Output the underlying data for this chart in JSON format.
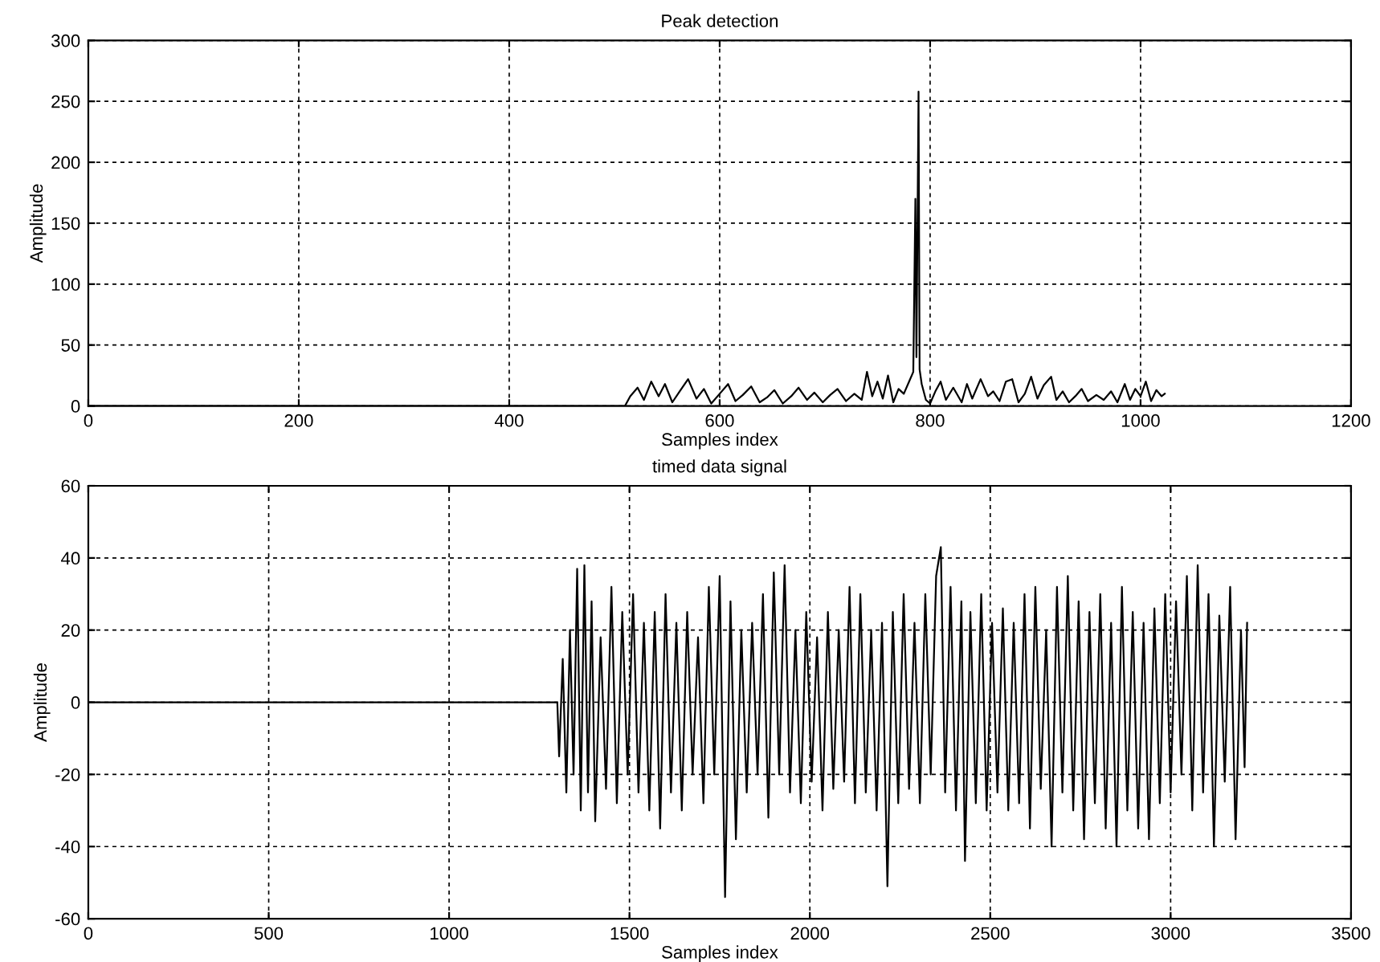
{
  "chart_data": [
    {
      "type": "line",
      "title": "Peak detection",
      "xlabel": "Samples index",
      "ylabel": "Amplitude",
      "xlim": [
        0,
        1200
      ],
      "ylim": [
        0,
        300
      ],
      "xticks": [
        0,
        200,
        400,
        600,
        800,
        1000,
        1200
      ],
      "yticks": [
        0,
        50,
        100,
        150,
        200,
        250,
        300
      ],
      "grid": true,
      "legend": false,
      "line_style": "solid",
      "series": [
        {
          "color": "#000000",
          "x": [
            0,
            510,
            515,
            522,
            528,
            535,
            542,
            548,
            555,
            562,
            570,
            578,
            585,
            592,
            600,
            608,
            615,
            622,
            630,
            638,
            645,
            652,
            660,
            668,
            675,
            683,
            690,
            698,
            705,
            712,
            720,
            728,
            735,
            740,
            745,
            750,
            755,
            760,
            765,
            770,
            775,
            780,
            784,
            786,
            787,
            789,
            790,
            792,
            796,
            800,
            805,
            810,
            815,
            822,
            830,
            835,
            840,
            848,
            855,
            860,
            866,
            872,
            878,
            884,
            890,
            896,
            902,
            908,
            915,
            920,
            926,
            932,
            938,
            944,
            950,
            958,
            965,
            972,
            978,
            985,
            990,
            995,
            1000,
            1005,
            1010,
            1015,
            1020,
            1023
          ],
          "values": [
            0,
            0,
            8,
            15,
            5,
            20,
            8,
            18,
            3,
            12,
            22,
            6,
            14,
            2,
            10,
            18,
            4,
            9,
            16,
            3,
            7,
            13,
            2,
            8,
            15,
            5,
            11,
            3,
            9,
            14,
            4,
            10,
            5,
            28,
            8,
            20,
            6,
            25,
            3,
            14,
            10,
            20,
            28,
            170,
            40,
            258,
            30,
            18,
            5,
            2,
            12,
            20,
            5,
            15,
            3,
            18,
            6,
            22,
            8,
            12,
            4,
            20,
            22,
            3,
            10,
            24,
            6,
            17,
            24,
            5,
            12,
            3,
            8,
            14,
            4,
            9,
            5,
            12,
            3,
            18,
            5,
            14,
            8,
            20,
            4,
            13,
            8,
            10
          ]
        }
      ]
    },
    {
      "type": "line",
      "title": "timed data signal",
      "xlabel": "Samples index",
      "ylabel": "Amplitude",
      "xlim": [
        0,
        3500
      ],
      "ylim": [
        -60,
        60
      ],
      "xticks": [
        0,
        500,
        1000,
        1500,
        2000,
        2500,
        3000,
        3500
      ],
      "yticks": [
        -60,
        -40,
        -20,
        0,
        20,
        40,
        60
      ],
      "grid": true,
      "legend": false,
      "line_style": "solid",
      "series": [
        {
          "color": "#000000",
          "x": [
            0,
            1300,
            1305,
            1315,
            1325,
            1335,
            1345,
            1355,
            1365,
            1375,
            1385,
            1395,
            1405,
            1420,
            1435,
            1450,
            1465,
            1480,
            1495,
            1510,
            1525,
            1540,
            1555,
            1570,
            1585,
            1600,
            1615,
            1630,
            1645,
            1660,
            1675,
            1690,
            1705,
            1720,
            1735,
            1750,
            1765,
            1780,
            1795,
            1810,
            1825,
            1840,
            1855,
            1870,
            1885,
            1900,
            1915,
            1930,
            1945,
            1960,
            1975,
            1990,
            2005,
            2020,
            2035,
            2050,
            2065,
            2080,
            2095,
            2110,
            2125,
            2140,
            2155,
            2170,
            2185,
            2200,
            2215,
            2230,
            2245,
            2260,
            2275,
            2290,
            2305,
            2320,
            2335,
            2350,
            2363,
            2375,
            2390,
            2405,
            2420,
            2430,
            2445,
            2460,
            2475,
            2490,
            2505,
            2520,
            2535,
            2550,
            2565,
            2580,
            2595,
            2610,
            2625,
            2640,
            2655,
            2670,
            2685,
            2700,
            2715,
            2730,
            2745,
            2760,
            2775,
            2790,
            2805,
            2820,
            2835,
            2850,
            2865,
            2880,
            2895,
            2910,
            2925,
            2940,
            2955,
            2970,
            2985,
            3000,
            3015,
            3030,
            3045,
            3060,
            3075,
            3090,
            3105,
            3120,
            3135,
            3150,
            3165,
            3180,
            3195,
            3205,
            3212
          ],
          "values": [
            0,
            0,
            -15,
            12,
            -25,
            20,
            -20,
            37,
            -30,
            38,
            -25,
            28,
            -33,
            18,
            -24,
            32,
            -28,
            25,
            -20,
            30,
            -25,
            22,
            -30,
            25,
            -35,
            30,
            -25,
            22,
            -30,
            25,
            -20,
            18,
            -28,
            32,
            -20,
            35,
            -54,
            28,
            -38,
            20,
            -25,
            22,
            -20,
            30,
            -32,
            36,
            -20,
            38,
            -25,
            20,
            -28,
            25,
            -22,
            18,
            -30,
            25,
            -24,
            20,
            -22,
            32,
            -28,
            30,
            -25,
            20,
            -30,
            22,
            -51,
            25,
            -28,
            30,
            -24,
            22,
            -28,
            30,
            -20,
            35,
            43,
            -25,
            32,
            -30,
            28,
            -44,
            25,
            -28,
            30,
            -30,
            22,
            -25,
            26,
            -30,
            22,
            -28,
            30,
            -35,
            32,
            -24,
            20,
            -40,
            32,
            -25,
            35,
            -30,
            28,
            -38,
            25,
            -28,
            30,
            -35,
            22,
            -40,
            32,
            -30,
            25,
            -35,
            22,
            -38,
            26,
            -28,
            30,
            -25,
            28,
            -20,
            35,
            -30,
            38,
            -25,
            30,
            -40,
            24,
            -22,
            32,
            -38,
            20,
            -18,
            22
          ]
        }
      ]
    }
  ]
}
